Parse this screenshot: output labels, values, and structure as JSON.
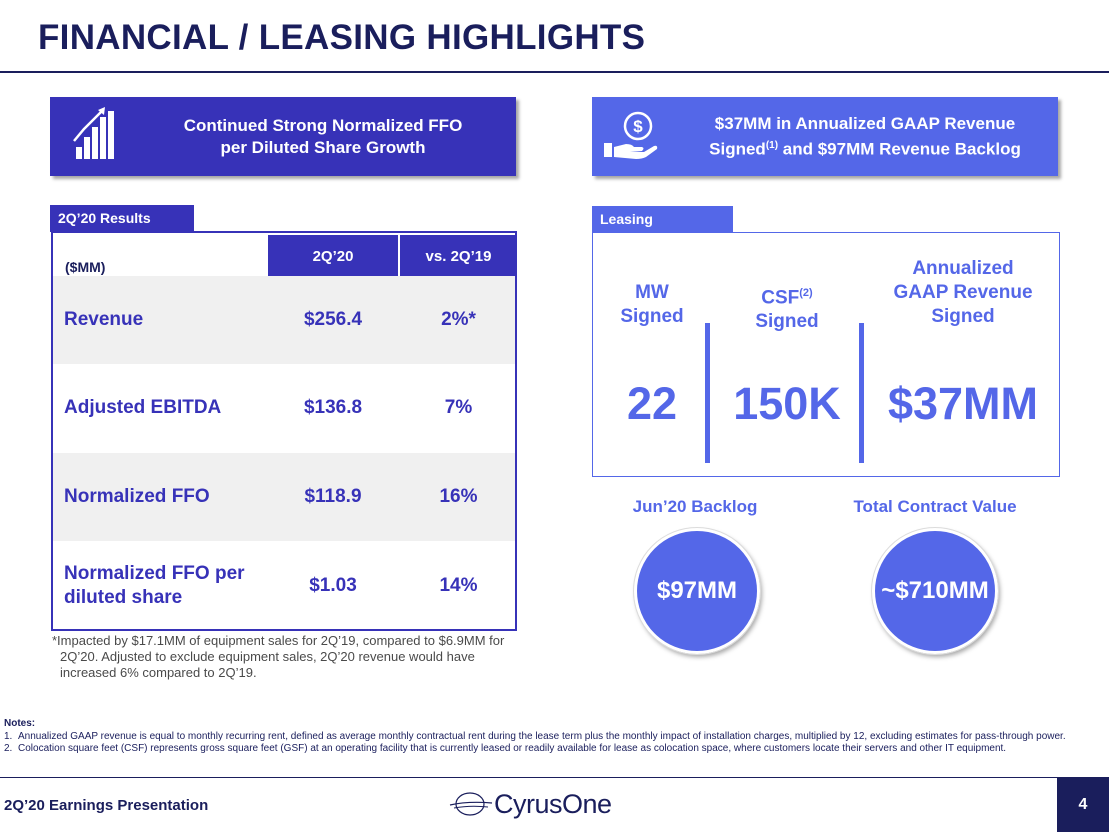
{
  "page": {
    "title": "FINANCIAL / LEASING HIGHLIGHTS",
    "footer_label": "2Q’20 Earnings Presentation",
    "page_number": "4",
    "logo_text": "CyrusOne"
  },
  "colors": {
    "navy": "#1a1e5c",
    "indigo": "#3732b8",
    "periwinkle": "#5467e8"
  },
  "banners": {
    "left": {
      "icon": "bar-growth-icon",
      "line1": "Continued Strong Normalized FFO",
      "line2": "per Diluted Share Growth"
    },
    "right": {
      "icon": "dollar-hand-icon",
      "line1": "$37MM in Annualized GAAP Revenue",
      "line2_pre": "Signed",
      "line2_sup": "(1)",
      "line2_post": " and $97MM Revenue Backlog"
    }
  },
  "results": {
    "tag": "2Q’20 Results",
    "header_label": "($MM)",
    "columns": [
      "2Q’20",
      "vs. 2Q’19"
    ],
    "rows": [
      {
        "label": "Revenue",
        "value": "$256.4",
        "change": "2%*"
      },
      {
        "label": "Adjusted EBITDA",
        "value": "$136.8",
        "change": "7%"
      },
      {
        "label": "Normalized FFO",
        "value": "$118.9",
        "change": "16%"
      },
      {
        "label": "Normalized FFO per diluted share",
        "value": "$1.03",
        "change": "14%"
      }
    ],
    "footnote": "*Impacted by $17.1MM of equipment sales for 2Q’19, compared to $6.9MM for 2Q’20. Adjusted to exclude equipment sales, 2Q’20 revenue would have increased 6% compared to 2Q’19."
  },
  "leasing": {
    "tag": "Leasing",
    "metrics": [
      {
        "head_line1": "MW",
        "head_line2": "Signed",
        "value": "22"
      },
      {
        "head_line1": "CSF",
        "head_sup": "(2)",
        "head_line2": "Signed",
        "value": "150K"
      },
      {
        "head_line0": "Annualized",
        "head_line1": "GAAP Revenue",
        "head_line2": "Signed",
        "value": "$37MM"
      }
    ]
  },
  "backlog": {
    "label": "Jun’20 Backlog",
    "value": "$97MM"
  },
  "contract": {
    "label": "Total Contract Value",
    "value": "~$710MM"
  },
  "notes": {
    "heading": "Notes:",
    "items": [
      {
        "num": "1.",
        "text": "Annualized GAAP revenue is equal to monthly recurring rent, defined as average monthly contractual rent during the lease term plus the monthly impact of installation charges, multiplied by 12, excluding estimates for pass-through power."
      },
      {
        "num": "2.",
        "text": "Colocation square feet (CSF) represents gross square feet (GSF) at an operating facility that is currently leased or readily available for lease as colocation space, where customers locate their servers and other IT equipment."
      }
    ]
  }
}
